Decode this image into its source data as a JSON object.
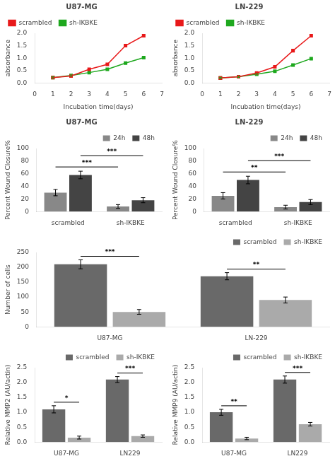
{
  "chart_data": [
    {
      "type": "line",
      "title": "U87-MG",
      "xlabel": "Incubation time(days)",
      "ylabel": "absorbance",
      "x": [
        1,
        2,
        3,
        4,
        5,
        6
      ],
      "xlim": [
        0,
        7
      ],
      "xticks": [
        0,
        1,
        2,
        3,
        4,
        5,
        6,
        7
      ],
      "ylim": [
        0.0,
        2.0
      ],
      "yticks": [
        {
          "value": 0.0,
          "label": "0.0"
        },
        {
          "value": 0.5,
          "label": "0.5"
        },
        {
          "value": 1.0,
          "label": "1.0"
        },
        {
          "value": 1.5,
          "label": "1.5"
        },
        {
          "value": 2.0,
          "label": "2.0"
        }
      ],
      "grid": false,
      "legend": "upper left",
      "series": [
        {
          "name": "scrambled",
          "color": "#e8191a",
          "marker": "square",
          "values": [
            0.22,
            0.28,
            0.55,
            0.75,
            1.5,
            1.9
          ],
          "errors": [
            0.04,
            0.04,
            0.04,
            0.04,
            0.04,
            0.04
          ]
        },
        {
          "name": "sh-IKBKE",
          "color": "#1ea81e",
          "marker": "square",
          "values": [
            0.22,
            0.3,
            0.42,
            0.55,
            0.8,
            1.02
          ],
          "errors": [
            0.03,
            0.03,
            0.03,
            0.03,
            0.03,
            0.03
          ]
        }
      ]
    },
    {
      "type": "line",
      "title": "LN-229",
      "xlabel": "Incubation time(days)",
      "ylabel": "absorbance",
      "x": [
        1,
        2,
        3,
        4,
        5,
        6
      ],
      "xlim": [
        0,
        7
      ],
      "xticks": [
        0,
        1,
        2,
        3,
        4,
        5,
        6,
        7
      ],
      "ylim": [
        0.0,
        2.0
      ],
      "yticks": [
        {
          "value": 0.0,
          "label": "0.0"
        },
        {
          "value": 0.5,
          "label": "0.5"
        },
        {
          "value": 1.0,
          "label": "1.0"
        },
        {
          "value": 1.5,
          "label": "1.5"
        },
        {
          "value": 2.0,
          "label": "2.0"
        }
      ],
      "grid": false,
      "legend": "upper left",
      "series": [
        {
          "name": "scrambled",
          "color": "#e8191a",
          "marker": "square",
          "values": [
            0.2,
            0.25,
            0.4,
            0.65,
            1.3,
            1.9
          ],
          "errors": [
            0.04,
            0.04,
            0.04,
            0.04,
            0.04,
            0.04
          ]
        },
        {
          "name": "sh-IKBKE",
          "color": "#1ea81e",
          "marker": "square",
          "values": [
            0.2,
            0.25,
            0.35,
            0.47,
            0.72,
            0.98
          ],
          "errors": [
            0.03,
            0.03,
            0.03,
            0.03,
            0.03,
            0.03
          ]
        }
      ]
    },
    {
      "type": "bar",
      "title": "U87-MG",
      "ylabel": "Percent Wound Closure%",
      "categories": [
        "scrambled",
        "sh-IKBKE"
      ],
      "ylim": [
        0,
        100
      ],
      "yticks": [
        0,
        20,
        40,
        60,
        80,
        100
      ],
      "grid": false,
      "legend": "upper right",
      "series": [
        {
          "name": "24h",
          "color": "#888888",
          "values": [
            30,
            8
          ],
          "errors": [
            5,
            3
          ]
        },
        {
          "name": "48h",
          "color": "#444444",
          "values": [
            58,
            18
          ],
          "errors": [
            6,
            4
          ]
        }
      ],
      "annotations": [
        {
          "text": "***",
          "series": "24h"
        },
        {
          "text": "***",
          "series": "48h"
        }
      ]
    },
    {
      "type": "bar",
      "title": "LN-229",
      "ylabel": "Percent Wound Closure%",
      "categories": [
        "scrambled",
        "sh-IKBKE"
      ],
      "ylim": [
        0,
        100
      ],
      "yticks": [
        0,
        20,
        40,
        60,
        80,
        100
      ],
      "grid": false,
      "legend": "upper right",
      "series": [
        {
          "name": "24h",
          "color": "#888888",
          "values": [
            25,
            7
          ],
          "errors": [
            5,
            3
          ]
        },
        {
          "name": "48h",
          "color": "#444444",
          "values": [
            50,
            15
          ],
          "errors": [
            6,
            4
          ]
        }
      ],
      "annotations": [
        {
          "text": "**",
          "series": "24h"
        },
        {
          "text": "***",
          "series": "48h"
        }
      ]
    },
    {
      "type": "bar",
      "ylabel": "Number of cells",
      "categories": [
        "U87-MG",
        "LN-229"
      ],
      "ylim": [
        0,
        250
      ],
      "yticks": [
        0,
        50,
        100,
        150,
        200,
        250
      ],
      "grid": false,
      "legend": "upper right",
      "series": [
        {
          "name": "scrambled",
          "color": "#696969",
          "values": [
            210,
            170
          ],
          "errors": [
            15,
            12
          ]
        },
        {
          "name": "sh-IKBKE",
          "color": "#aaaaaa",
          "values": [
            50,
            90
          ],
          "errors": [
            8,
            10
          ]
        }
      ],
      "annotations": [
        {
          "text": "***",
          "category": "U87-MG"
        },
        {
          "text": "**",
          "category": "LN-229"
        }
      ]
    },
    {
      "type": "bar",
      "ylabel": "Relative MMP2 (AU/actin)",
      "categories": [
        "U87-MG",
        "LN229"
      ],
      "ylim": [
        0,
        2.5
      ],
      "yticks": [
        {
          "value": 0.0,
          "label": "0.0"
        },
        {
          "value": 0.5,
          "label": "0.5"
        },
        {
          "value": 1.0,
          "label": "1.0"
        },
        {
          "value": 1.5,
          "label": "1.5"
        },
        {
          "value": 2.0,
          "label": "2.0"
        },
        {
          "value": 2.5,
          "label": "2.5"
        }
      ],
      "grid": false,
      "legend": "upper right",
      "series": [
        {
          "name": "scrambled",
          "color": "#696969",
          "values": [
            1.1,
            2.1
          ],
          "errors": [
            0.12,
            0.1
          ]
        },
        {
          "name": "sh-IKBKE",
          "color": "#aaaaaa",
          "values": [
            0.15,
            0.2
          ],
          "errors": [
            0.05,
            0.04
          ]
        }
      ],
      "annotations": [
        {
          "text": "*",
          "category": "U87-MG"
        },
        {
          "text": "***",
          "category": "LN229"
        }
      ]
    },
    {
      "type": "bar",
      "ylabel": "Relative MMP9 (AU/actin)",
      "categories": [
        "U87-MG",
        "LN229"
      ],
      "ylim": [
        0,
        2.5
      ],
      "yticks": [
        {
          "value": 0.0,
          "label": "0.0"
        },
        {
          "value": 0.5,
          "label": "0.5"
        },
        {
          "value": 1.0,
          "label": "1.0"
        },
        {
          "value": 1.5,
          "label": "1.5"
        },
        {
          "value": 2.0,
          "label": "2.0"
        },
        {
          "value": 2.5,
          "label": "2.5"
        }
      ],
      "grid": false,
      "legend": "upper right",
      "series": [
        {
          "name": "scrambled",
          "color": "#696969",
          "values": [
            1.0,
            2.1
          ],
          "errors": [
            0.1,
            0.12
          ]
        },
        {
          "name": "sh-IKBKE",
          "color": "#aaaaaa",
          "values": [
            0.12,
            0.6
          ],
          "errors": [
            0.04,
            0.06
          ]
        }
      ],
      "annotations": [
        {
          "text": "**",
          "category": "U87-MG"
        },
        {
          "text": "***",
          "category": "LN229"
        }
      ]
    }
  ]
}
